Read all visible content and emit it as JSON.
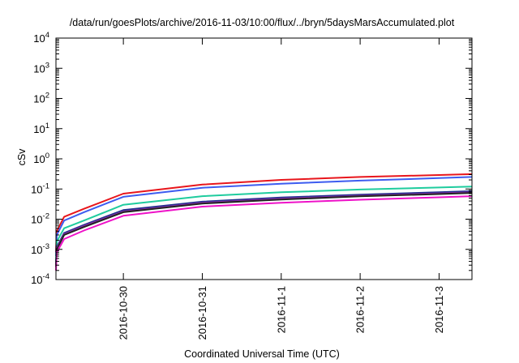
{
  "chart_data": {
    "type": "line",
    "title": "/data/run/goesPlots/archive/2016-11-03/10:00/flux/../bryn/5daysMarsAccumulated.plot",
    "xlabel": "Coordinated Universal Time (UTC)",
    "ylabel": "cSv",
    "yscale": "log",
    "ylim": [
      0.0001,
      10000
    ],
    "xlim": [
      "2016-10-29 03:30",
      "2016-11-03 10:00"
    ],
    "y_ticks": [
      {
        "base": "10",
        "exp": "-4"
      },
      {
        "base": "10",
        "exp": "-3"
      },
      {
        "base": "10",
        "exp": "-2"
      },
      {
        "base": "10",
        "exp": "-1"
      },
      {
        "base": "10",
        "exp": "0"
      },
      {
        "base": "10",
        "exp": "1"
      },
      {
        "base": "10",
        "exp": "2"
      },
      {
        "base": "10",
        "exp": "3"
      },
      {
        "base": "10",
        "exp": "4"
      }
    ],
    "x_ticks": [
      "2016-10-30",
      "2016-10-31",
      "2016-11-1",
      "2016-11-2",
      "2016-11-3"
    ],
    "grid": false,
    "legend": "none",
    "series": [
      {
        "color": "#e8161c",
        "x": [
          "2016-10-29 03:30",
          "2016-10-29 03:45",
          "2016-10-29 06:00",
          "2016-10-29 12:00",
          "2016-10-30 00:00",
          "2016-10-31 00:00",
          "2016-11-01 00:00",
          "2016-11-02 00:00",
          "2016-11-03 00:00",
          "2016-11-03 10:00"
        ],
        "values": [
          0.0008,
          0.004,
          0.012,
          0.022,
          0.07,
          0.14,
          0.2,
          0.25,
          0.29,
          0.31
        ]
      },
      {
        "color": "#3d5cf0",
        "x": [
          "2016-10-29 03:30",
          "2016-10-29 03:45",
          "2016-10-29 06:00",
          "2016-10-29 12:00",
          "2016-10-30 00:00",
          "2016-10-31 00:00",
          "2016-11-01 00:00",
          "2016-11-02 00:00",
          "2016-11-03 00:00",
          "2016-11-03 10:00"
        ],
        "values": [
          0.0006,
          0.003,
          0.009,
          0.017,
          0.055,
          0.11,
          0.15,
          0.19,
          0.23,
          0.25
        ]
      },
      {
        "color": "#1fcc9e",
        "x": [
          "2016-10-29 03:30",
          "2016-10-29 03:45",
          "2016-10-29 06:00",
          "2016-10-29 12:00",
          "2016-10-30 00:00",
          "2016-10-31 00:00",
          "2016-11-01 00:00",
          "2016-11-02 00:00",
          "2016-11-03 00:00",
          "2016-11-03 10:00"
        ],
        "values": [
          0.0004,
          0.0018,
          0.005,
          0.009,
          0.03,
          0.058,
          0.078,
          0.096,
          0.112,
          0.12
        ]
      },
      {
        "color": "#1e2f8c",
        "x": [
          "2016-10-29 03:30",
          "2016-10-29 03:45",
          "2016-10-29 06:00",
          "2016-10-29 12:00",
          "2016-10-30 00:00",
          "2016-10-31 00:00",
          "2016-11-01 00:00",
          "2016-11-02 00:00",
          "2016-11-03 00:00",
          "2016-11-03 10:00"
        ],
        "values": [
          0.0003,
          0.0012,
          0.0035,
          0.0065,
          0.02,
          0.038,
          0.052,
          0.065,
          0.078,
          0.085
        ]
      },
      {
        "color": "#8a2ba8",
        "x": [
          "2016-10-29 03:30",
          "2016-10-29 03:45",
          "2016-10-29 06:00",
          "2016-10-29 12:00",
          "2016-10-30 00:00",
          "2016-10-31 00:00",
          "2016-11-01 00:00",
          "2016-11-02 00:00",
          "2016-11-03 00:00",
          "2016-11-03 10:00"
        ],
        "values": [
          0.00028,
          0.0011,
          0.0032,
          0.006,
          0.018,
          0.035,
          0.048,
          0.06,
          0.072,
          0.078
        ]
      },
      {
        "color": "#222222",
        "x": [
          "2016-10-29 03:30",
          "2016-10-29 03:45",
          "2016-10-29 06:00",
          "2016-10-29 12:00",
          "2016-10-30 00:00",
          "2016-10-31 00:00",
          "2016-11-01 00:00",
          "2016-11-02 00:00",
          "2016-11-03 00:00",
          "2016-11-03 10:00"
        ],
        "values": [
          0.00026,
          0.001,
          0.003,
          0.0055,
          0.017,
          0.033,
          0.045,
          0.057,
          0.068,
          0.074
        ]
      },
      {
        "color": "#ee12c8",
        "x": [
          "2016-10-29 03:30",
          "2016-10-29 03:45",
          "2016-10-29 06:00",
          "2016-10-29 12:00",
          "2016-10-30 00:00",
          "2016-10-31 00:00",
          "2016-11-01 00:00",
          "2016-11-02 00:00",
          "2016-11-03 00:00",
          "2016-11-03 10:00"
        ],
        "values": [
          0.0002,
          0.0008,
          0.0022,
          0.0042,
          0.013,
          0.026,
          0.035,
          0.044,
          0.053,
          0.058
        ]
      }
    ]
  }
}
